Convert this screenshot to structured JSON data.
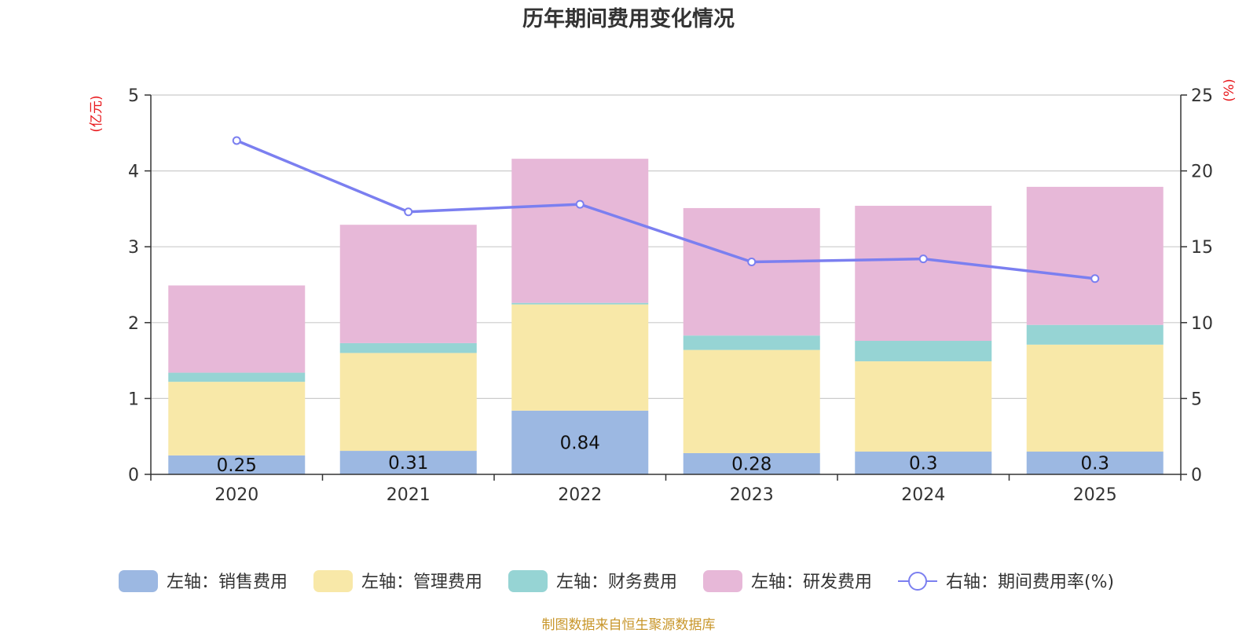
{
  "chart_data": {
    "type": "bar",
    "title": "历年期间费用变化情况",
    "left_unit": "(亿元)",
    "right_unit": "(%)",
    "categories": [
      "2020",
      "2021",
      "2022",
      "2023",
      "2024",
      "2025"
    ],
    "left_ylim": [
      0,
      5
    ],
    "left_ticks": [
      "0",
      "1",
      "2",
      "3",
      "4",
      "5"
    ],
    "right_ylim": [
      0,
      25
    ],
    "right_ticks": [
      "0",
      "5",
      "10",
      "15",
      "20",
      "25"
    ],
    "series": [
      {
        "name": "左轴：销售费用",
        "axis": "left",
        "color": "#9cb8e2",
        "values": [
          0.25,
          0.31,
          0.84,
          0.28,
          0.3,
          0.3
        ],
        "labels": [
          "0.25",
          "0.31",
          "0.84",
          "0.28",
          "0.3",
          "0.3"
        ]
      },
      {
        "name": "左轴：管理费用",
        "axis": "left",
        "color": "#f8e8a8",
        "values": [
          0.97,
          1.29,
          1.4,
          1.36,
          1.19,
          1.41
        ]
      },
      {
        "name": "左轴：财务费用",
        "axis": "left",
        "color": "#96d4d4",
        "values": [
          0.12,
          0.13,
          0.02,
          0.19,
          0.27,
          0.26
        ]
      },
      {
        "name": "左轴：研发费用",
        "axis": "left",
        "color": "#e7b8d8",
        "values": [
          1.15,
          1.56,
          1.9,
          1.68,
          1.78,
          1.82
        ]
      },
      {
        "name": "右轴：期间费用率(%)",
        "axis": "right",
        "type": "line",
        "color": "#7b7ff0",
        "values": [
          22.0,
          17.3,
          17.8,
          14.0,
          14.2,
          12.9
        ]
      }
    ],
    "grid": true,
    "legend_position": "bottom"
  },
  "footer": "制图数据来自恒生聚源数据库"
}
